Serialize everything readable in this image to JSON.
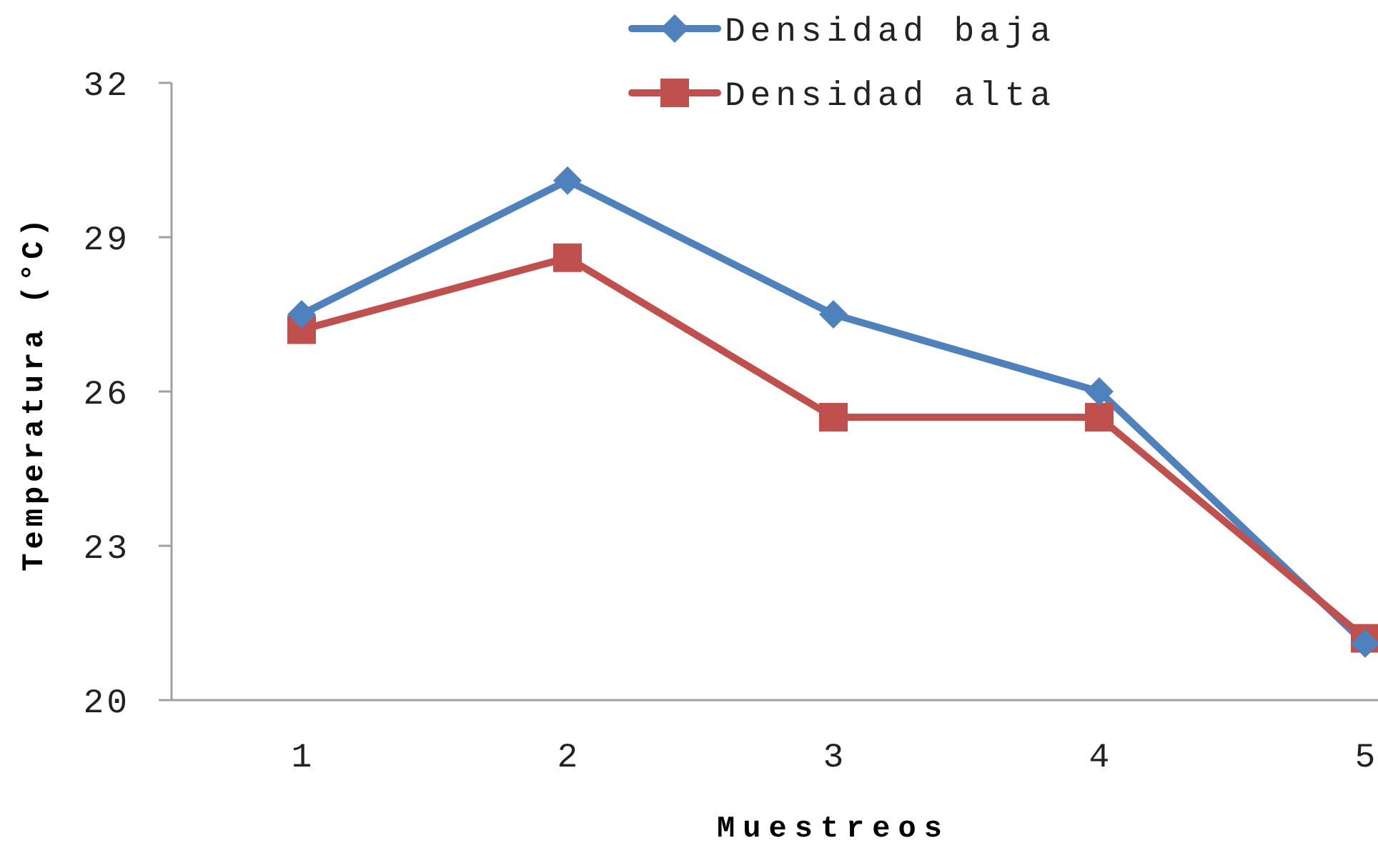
{
  "chart_data": {
    "type": "line",
    "xlabel": "Muestreos",
    "ylabel": "Temperatura (°C)",
    "categories": [
      "1",
      "2",
      "3",
      "4",
      "5"
    ],
    "ylim": [
      20,
      32
    ],
    "yticks": [
      20,
      23,
      26,
      29,
      32
    ],
    "legend": "top",
    "series": [
      {
        "name": "Densidad baja",
        "color": "#4f81bd",
        "marker": "diamond",
        "values": [
          27.5,
          30.1,
          27.5,
          26.0,
          21.1
        ]
      },
      {
        "name": "Densidad alta",
        "color": "#c0504d",
        "marker": "square",
        "values": [
          27.2,
          28.6,
          25.5,
          25.5,
          21.2
        ]
      }
    ]
  }
}
